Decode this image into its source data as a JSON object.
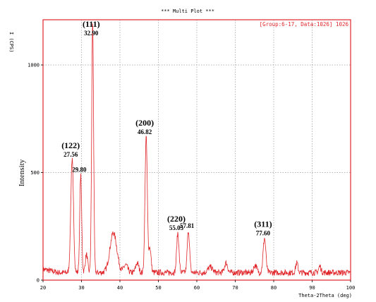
{
  "header": {
    "title": "*** Multi Plot ***",
    "group_info": "[Group:6-17, Data:1026] 1026",
    "y_unit_label": "I (CPS)"
  },
  "colors": {
    "frame": "#e0262a",
    "trace": "#e0262a",
    "grid": "#888888",
    "text": "#000000"
  },
  "chart_data": {
    "type": "line",
    "xlabel": "Theta-2Theta (deg)",
    "ylabel": "Intensity",
    "xlim": [
      20,
      100
    ],
    "ylim": [
      0,
      1200
    ],
    "x_ticks": [
      20,
      30,
      40,
      50,
      60,
      70,
      80,
      90,
      100
    ],
    "y_ticks": [
      0,
      500,
      1000
    ],
    "grid": true,
    "baseline": 35,
    "peaks": [
      {
        "x": 27.56,
        "y": 560,
        "width": 0.35
      },
      {
        "x": 29.8,
        "y": 490,
        "width": 0.25
      },
      {
        "x": 31.3,
        "y": 120,
        "width": 0.3
      },
      {
        "x": 32.9,
        "y": 1200,
        "width": 0.25
      },
      {
        "x": 38.3,
        "y": 220,
        "width": 0.9
      },
      {
        "x": 41.5,
        "y": 70,
        "width": 0.5
      },
      {
        "x": 44.5,
        "y": 80,
        "width": 0.4
      },
      {
        "x": 46.82,
        "y": 665,
        "width": 0.3
      },
      {
        "x": 47.8,
        "y": 150,
        "width": 0.3
      },
      {
        "x": 55.05,
        "y": 220,
        "width": 0.3
      },
      {
        "x": 57.81,
        "y": 230,
        "width": 0.3
      },
      {
        "x": 63.5,
        "y": 60,
        "width": 0.6
      },
      {
        "x": 67.6,
        "y": 80,
        "width": 0.4
      },
      {
        "x": 75.2,
        "y": 70,
        "width": 0.4
      },
      {
        "x": 77.6,
        "y": 195,
        "width": 0.35
      },
      {
        "x": 86.0,
        "y": 80,
        "width": 0.3
      },
      {
        "x": 92.0,
        "y": 65,
        "width": 0.3
      }
    ],
    "annotations": [
      {
        "miller": "(111)",
        "position": "32.90",
        "x": 32.9,
        "y": 1200
      },
      {
        "miller": "(122)",
        "position": "27.56",
        "x": 27.56,
        "y": 560
      },
      {
        "miller": "",
        "position": "29.80",
        "x": 29.8,
        "y": 490
      },
      {
        "miller": "(200)",
        "position": "46.82",
        "x": 46.82,
        "y": 665
      },
      {
        "miller": "(220)",
        "position": "55.05",
        "x": 55.05,
        "y": 220
      },
      {
        "miller": "",
        "position": "57.81",
        "x": 57.81,
        "y": 230
      },
      {
        "miller": "(311)",
        "position": "77.60",
        "x": 77.6,
        "y": 195
      }
    ]
  }
}
